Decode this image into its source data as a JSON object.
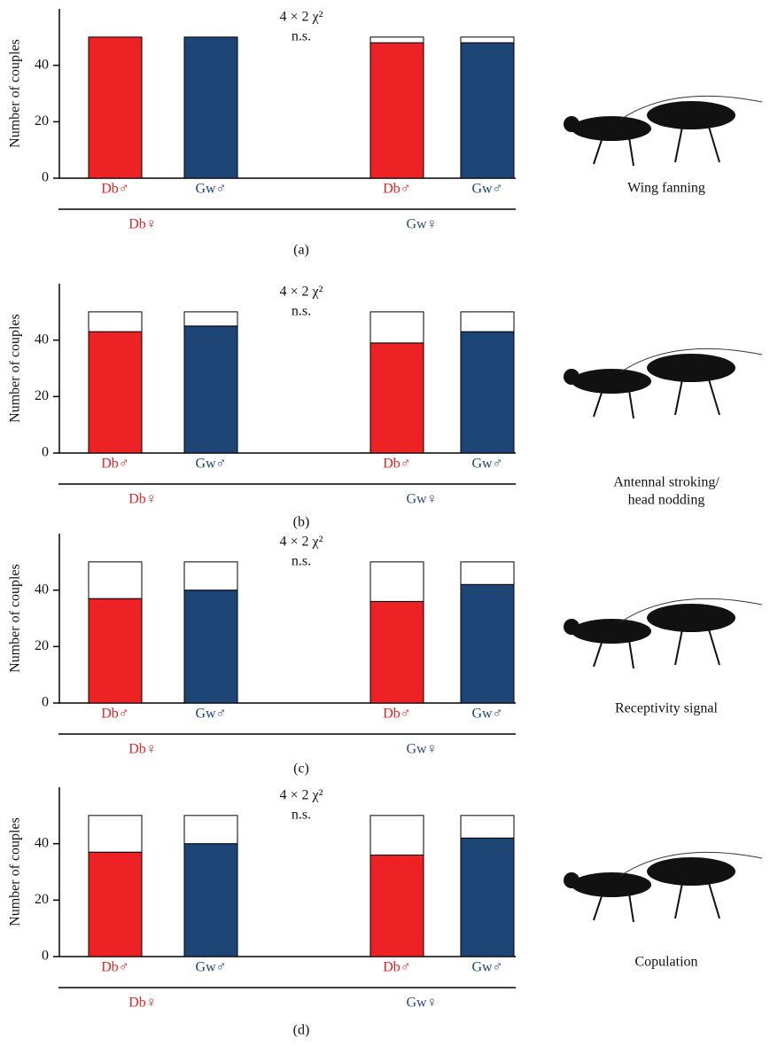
{
  "chart_data": [
    {
      "type": "bar",
      "panel_label": "(a)",
      "ylabel": "Number of couples",
      "annotation": "4 × 2 χ²",
      "annotation_note": "n.s.",
      "categories": [
        "Db♂",
        "Gw♂",
        "Db♂",
        "Gw♂"
      ],
      "groups": [
        "Db♀",
        "Gw♀"
      ],
      "group_colors": [
        "#e8262a",
        "#2f4f7f"
      ],
      "series": [
        {
          "values": [
            50,
            50,
            48,
            48
          ],
          "colors": [
            "#ed2224",
            "#1d4677",
            "#ed2224",
            "#1d4677"
          ]
        },
        {
          "values": [
            0,
            0,
            2,
            2
          ],
          "color": "#ffffff"
        }
      ],
      "ylim": [
        0,
        60
      ],
      "yticks": [
        0,
        20,
        40
      ],
      "illustration_label": [
        "Wing fanning"
      ]
    },
    {
      "type": "bar",
      "panel_label": "(b)",
      "ylabel": "Number of couples",
      "annotation": "4 × 2 χ²",
      "annotation_note": "n.s.",
      "categories": [
        "Db♂",
        "Gw♂",
        "Db♂",
        "Gw♂"
      ],
      "groups": [
        "Db♀",
        "Gw♀"
      ],
      "group_colors": [
        "#e8262a",
        "#2f4f7f"
      ],
      "series": [
        {
          "values": [
            43,
            45,
            39,
            43
          ],
          "colors": [
            "#ed2224",
            "#1d4677",
            "#ed2224",
            "#1d4677"
          ]
        },
        {
          "values": [
            7,
            5,
            11,
            7
          ],
          "color": "#ffffff"
        }
      ],
      "ylim": [
        0,
        60
      ],
      "yticks": [
        0,
        20,
        40
      ],
      "illustration_label": [
        "Antennal stroking/",
        "head nodding"
      ]
    },
    {
      "type": "bar",
      "panel_label": "(c)",
      "ylabel": "Number of couples",
      "annotation": "4 × 2 χ²",
      "annotation_note": "n.s.",
      "categories": [
        "Db♂",
        "Gw♂",
        "Db♂",
        "Gw♂"
      ],
      "groups": [
        "Db♀",
        "Gw♀"
      ],
      "group_colors": [
        "#e8262a",
        "#2f4f7f"
      ],
      "series": [
        {
          "values": [
            37,
            40,
            36,
            42
          ],
          "colors": [
            "#ed2224",
            "#1d4677",
            "#ed2224",
            "#1d4677"
          ]
        },
        {
          "values": [
            13,
            10,
            14,
            8
          ],
          "color": "#ffffff"
        }
      ],
      "ylim": [
        0,
        60
      ],
      "yticks": [
        0,
        20,
        40
      ],
      "illustration_label": [
        "Receptivity signal"
      ]
    },
    {
      "type": "bar",
      "panel_label": "(d)",
      "ylabel": "Number of couples",
      "annotation": "4 × 2 χ²",
      "annotation_note": "n.s.",
      "categories": [
        "Db♂",
        "Gw♂",
        "Db♂",
        "Gw♂"
      ],
      "groups": [
        "Db♀",
        "Gw♀"
      ],
      "group_colors": [
        "#e8262a",
        "#2f4f7f"
      ],
      "series": [
        {
          "values": [
            37,
            40,
            36,
            42
          ],
          "colors": [
            "#ed2224",
            "#1d4677",
            "#ed2224",
            "#1d4677"
          ]
        },
        {
          "values": [
            13,
            10,
            14,
            8
          ],
          "color": "#ffffff"
        }
      ],
      "ylim": [
        0,
        60
      ],
      "yticks": [
        0,
        20,
        40
      ],
      "illustration_label": [
        "Copulation"
      ]
    }
  ]
}
